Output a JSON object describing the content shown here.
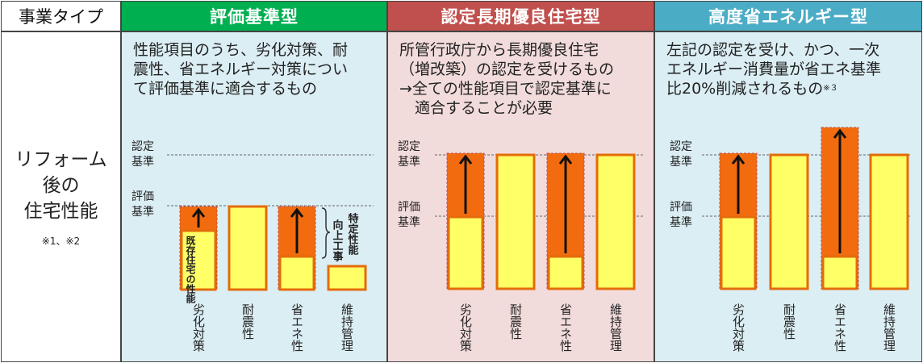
{
  "header": {
    "type_label": "事業タイプ",
    "col1": {
      "title": "評価基準型",
      "color": "#00b050"
    },
    "col2": {
      "title": "認定長期優良住宅型",
      "color": "#c0504d"
    },
    "col3": {
      "title": "高度省エネルギー型",
      "color": "#4bacc6"
    }
  },
  "left": {
    "line1": "リフォーム",
    "line2": "後の",
    "line3": "住宅性能",
    "notes": "※1、※2"
  },
  "panels": [
    {
      "id": "p1",
      "bg": "#dbeef4",
      "desc": [
        "性能項目のうち、劣化対策、耐",
        "震性、省エネルギー対策につい",
        "て評価基準に適合するもの"
      ],
      "y_labels": {
        "nintei1": "認定",
        "nintei2": "基準",
        "hyoka1": "評価",
        "hyoka2": "基準"
      },
      "bars": [
        "劣化対策",
        "耐震性",
        "省エネ性",
        "維持管理"
      ],
      "bar_note": "既存住宅の性能",
      "side_note_a": "向上工事",
      "side_note_b": "特定性能"
    },
    {
      "id": "p2",
      "bg": "#f2dcdb",
      "desc": [
        "所管行政庁から長期優良住宅",
        "（増改築）の認定を受けるもの",
        "→全ての性能項目で認定基準に",
        "　適合することが必要"
      ],
      "y_labels": {
        "nintei1": "認定",
        "nintei2": "基準",
        "hyoka1": "評価",
        "hyoka2": "基準"
      },
      "bars": [
        "劣化対策",
        "耐震性",
        "省エネ性",
        "維持管理"
      ]
    },
    {
      "id": "p3",
      "bg": "#dbeef4",
      "desc": [
        "左記の認定を受け、かつ、一次",
        "エネルギー消費量が省エネ基準",
        "比20%削減されるもの"
      ],
      "desc_note": "※３",
      "y_labels": {
        "nintei1": "認定",
        "nintei2": "基準",
        "hyoka1": "評価",
        "hyoka2": "基準"
      },
      "bars": [
        "劣化対策",
        "耐震性",
        "省エネ性",
        "維持管理"
      ]
    }
  ],
  "colors": {
    "bar_fill": "#ffff66",
    "bar_border": "#e46c0a",
    "orange": "#f26b0f",
    "line": "#555555"
  }
}
